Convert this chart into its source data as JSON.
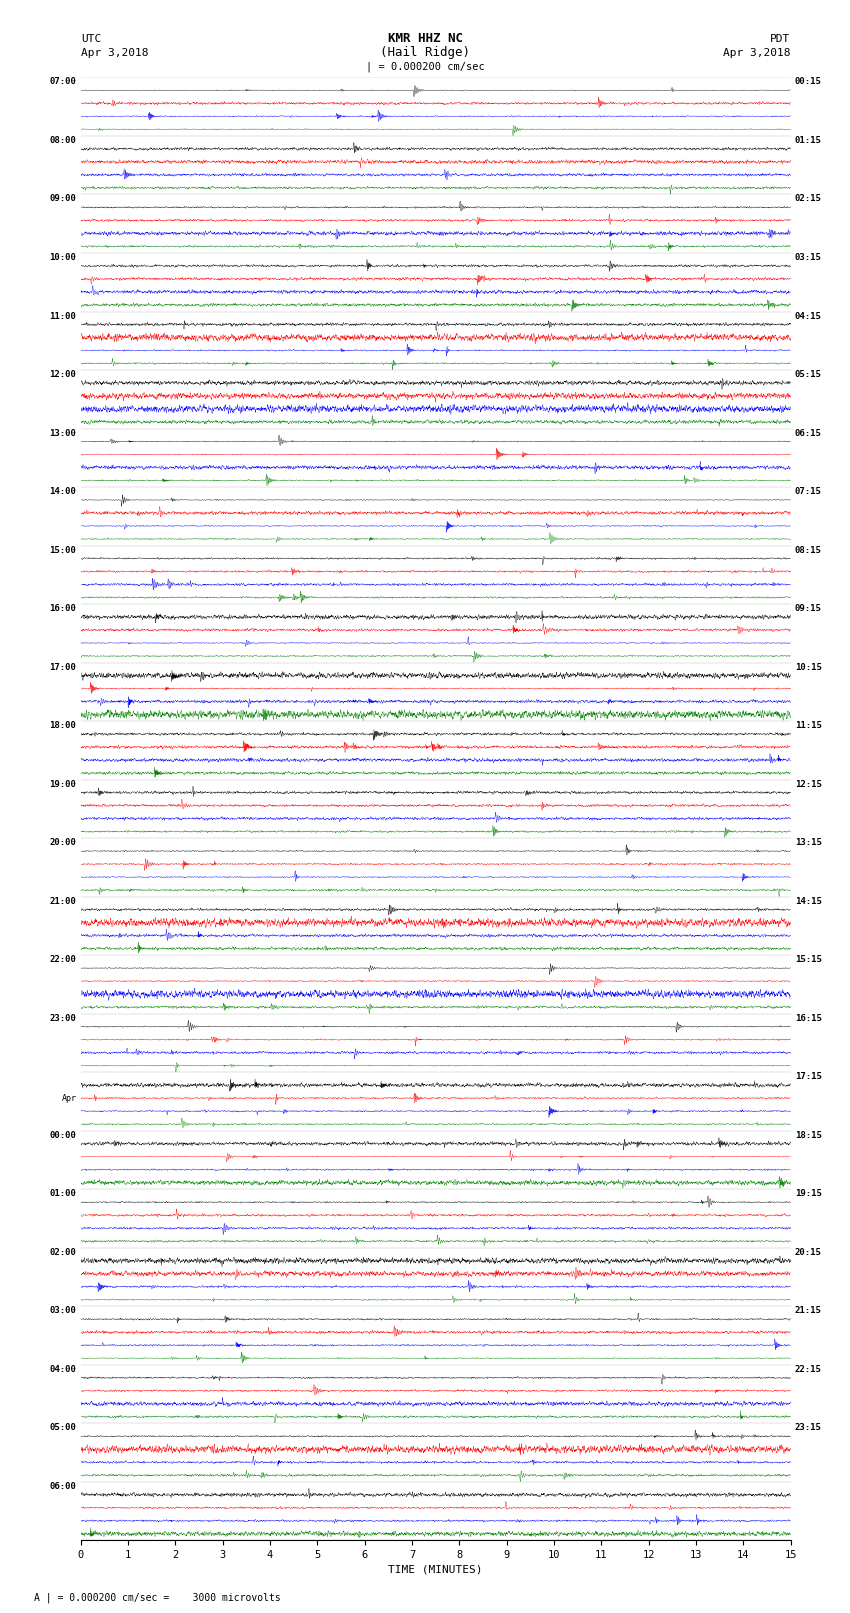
{
  "title_line1": "KMR HHZ NC",
  "title_line2": "(Hail Ridge)",
  "scale_text": "| = 0.000200 cm/sec",
  "bottom_label": "A | = 0.000200 cm/sec =    3000 microvolts",
  "xlabel": "TIME (MINUTES)",
  "utc_label": "UTC",
  "utc_date": "Apr 3,2018",
  "pdt_label": "PDT",
  "pdt_date": "Apr 3,2018",
  "left_times": [
    "07:00",
    "08:00",
    "09:00",
    "10:00",
    "11:00",
    "12:00",
    "13:00",
    "14:00",
    "15:00",
    "16:00",
    "17:00",
    "18:00",
    "19:00",
    "20:00",
    "21:00",
    "22:00",
    "23:00",
    "Apr",
    "00:00",
    "01:00",
    "02:00",
    "03:00",
    "04:00",
    "05:00",
    "06:00"
  ],
  "right_times": [
    "00:15",
    "01:15",
    "02:15",
    "03:15",
    "04:15",
    "05:15",
    "06:15",
    "07:15",
    "08:15",
    "09:15",
    "10:15",
    "11:15",
    "12:15",
    "13:15",
    "14:15",
    "15:15",
    "16:15",
    "17:15",
    "18:15",
    "19:15",
    "20:15",
    "21:15",
    "22:15",
    "23:15"
  ],
  "colors": [
    "black",
    "red",
    "blue",
    "green"
  ],
  "n_rows": 25,
  "n_traces_per_row": 4,
  "x_min": 0,
  "x_max": 15,
  "x_ticks": [
    0,
    1,
    2,
    3,
    4,
    5,
    6,
    7,
    8,
    9,
    10,
    11,
    12,
    13,
    14,
    15
  ],
  "background": "white",
  "fig_width": 8.5,
  "fig_height": 16.13,
  "seed": 12345
}
